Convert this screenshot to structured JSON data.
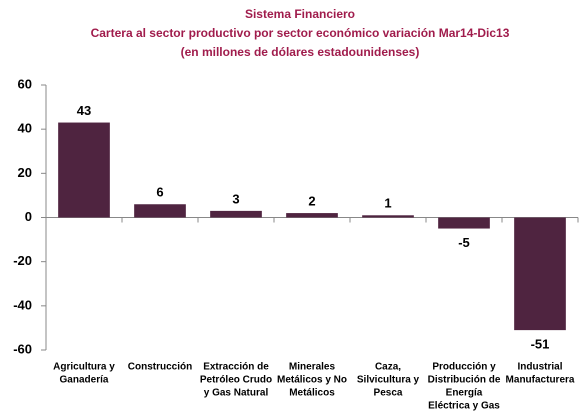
{
  "chart_data": {
    "type": "bar",
    "title": "Sistema Financiero",
    "subtitle": [
      "Cartera al sector productivo por sector económico variación Mar14-Dic13",
      "(en millones de dólares estadounidenses)"
    ],
    "categories": [
      [
        "Agricultura y",
        "Ganadería"
      ],
      [
        "Construcción"
      ],
      [
        "Extracción de",
        "Petróleo Crudo",
        "y Gas Natural"
      ],
      [
        "Minerales",
        "Metálicos y No",
        "Metálicos"
      ],
      [
        "Caza,",
        "Silvicultura y",
        "Pesca"
      ],
      [
        "Producción y",
        "Distribución de",
        "Energía",
        "Eléctrica y Gas"
      ],
      [
        "Industrial",
        "Manufacturera"
      ]
    ],
    "values": [
      43,
      6,
      3,
      2,
      1,
      -5,
      -51
    ],
    "color": "#4f2440",
    "title_color": "#a01c4c",
    "ylim": [
      -60,
      60
    ],
    "yticks": [
      -60,
      -40,
      -20,
      0,
      20,
      40,
      60
    ]
  }
}
